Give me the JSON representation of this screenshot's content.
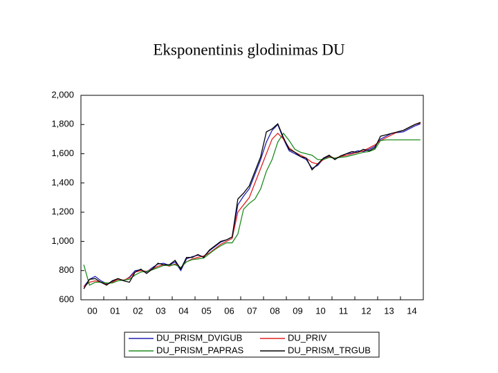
{
  "chart_data": {
    "type": "line",
    "title": "Eksponentinis glodinimas DU",
    "categories": [
      "00",
      null,
      null,
      null,
      "01",
      null,
      null,
      null,
      "02",
      null,
      null,
      null,
      "03",
      null,
      null,
      null,
      "04",
      null,
      null,
      null,
      "05",
      null,
      null,
      null,
      "06",
      null,
      null,
      null,
      "07",
      null,
      null,
      null,
      "08",
      null,
      null,
      null,
      "09",
      null,
      null,
      null,
      "10",
      null,
      null,
      null,
      "11",
      null,
      null,
      null,
      "12",
      null,
      null,
      null,
      "13",
      null,
      null,
      null,
      "14",
      null,
      null,
      null
    ],
    "ylim": [
      600,
      2000
    ],
    "yticks": [
      600,
      800,
      {
        "value": 1000,
        "label": "1,000"
      },
      {
        "value": 1200,
        "label": "1,200"
      },
      {
        "value": 1400,
        "label": "1,400"
      },
      {
        "value": 1600,
        "label": "1,600"
      },
      {
        "value": 1800,
        "label": "1,800"
      },
      {
        "value": 2000,
        "label": "2,000"
      }
    ],
    "grid": false,
    "series": [
      {
        "name": "DU_PRISM_DVIGUB",
        "color": "#1f1fb4",
        "values": [
          690,
          740,
          760,
          730,
          710,
          725,
          745,
          730,
          755,
          800,
          805,
          790,
          820,
          845,
          850,
          835,
          860,
          800,
          880,
          895,
          905,
          895,
          935,
          965,
          995,
          1010,
          1030,
          1250,
          1310,
          1360,
          1460,
          1560,
          1680,
          1760,
          1800,
          1700,
          1620,
          1600,
          1580,
          1560,
          1500,
          1520,
          1565,
          1585,
          1565,
          1580,
          1600,
          1605,
          1620,
          1615,
          1630,
          1650,
          1700,
          1720,
          1740,
          1745,
          1750,
          1770,
          1790,
          1805
        ]
      },
      {
        "name": "DU_PRIV",
        "color": "#e02020",
        "values": [
          690,
          720,
          730,
          720,
          705,
          720,
          740,
          735,
          750,
          790,
          800,
          795,
          810,
          830,
          840,
          830,
          845,
          820,
          860,
          880,
          890,
          900,
          920,
          950,
          980,
          1000,
          1020,
          1200,
          1250,
          1300,
          1400,
          1500,
          1600,
          1700,
          1740,
          1700,
          1640,
          1610,
          1590,
          1570,
          1540,
          1530,
          1560,
          1580,
          1570,
          1580,
          1590,
          1600,
          1610,
          1620,
          1640,
          1660,
          1690,
          1710,
          1730,
          1750,
          1760,
          1780,
          1800,
          1810
        ]
      },
      {
        "name": "DU_PRISM_PAPRAS",
        "color": "#1e8a1e",
        "values": [
          840,
          700,
          720,
          720,
          715,
          715,
          730,
          735,
          740,
          770,
          790,
          795,
          805,
          820,
          835,
          835,
          840,
          820,
          860,
          875,
          880,
          885,
          915,
          945,
          970,
          990,
          990,
          1050,
          1220,
          1260,
          1290,
          1360,
          1480,
          1560,
          1680,
          1740,
          1690,
          1630,
          1610,
          1600,
          1590,
          1560,
          1560,
          1575,
          1570,
          1575,
          1580,
          1590,
          1600,
          1610,
          1615,
          1630,
          1690,
          1695,
          1695,
          1695,
          1695,
          1695,
          1695,
          1695
        ]
      },
      {
        "name": "DU_PRISM_TRGUB",
        "color": "#000000",
        "values": [
          675,
          740,
          745,
          720,
          700,
          730,
          745,
          730,
          720,
          790,
          810,
          780,
          810,
          850,
          840,
          840,
          870,
          810,
          890,
          890,
          910,
          890,
          940,
          970,
          1000,
          1010,
          1030,
          1290,
          1330,
          1380,
          1480,
          1580,
          1750,
          1770,
          1805,
          1710,
          1630,
          1610,
          1580,
          1570,
          1490,
          1530,
          1570,
          1590,
          1560,
          1585,
          1600,
          1615,
          1610,
          1630,
          1620,
          1640,
          1720,
          1730,
          1740,
          1750,
          1760,
          1780,
          1800,
          1815
        ]
      }
    ]
  }
}
